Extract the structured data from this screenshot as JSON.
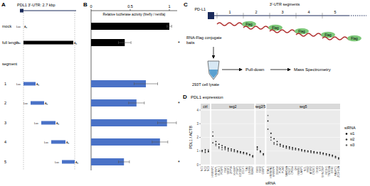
{
  "panel_labels": [
    "A",
    "B",
    "C",
    "D"
  ],
  "panel_a": {
    "title": "PDL1 3'-UTR: 2.7 kbp",
    "segment_header": "segment",
    "luc_label": "Luc",
    "polya_label": "A",
    "polya_sub": "n"
  },
  "panel_c": {
    "gene": "PD-L1",
    "utr_label": "3'-UTR segments",
    "segments": [
      "1",
      "2",
      "3",
      "4",
      "5"
    ],
    "tag": "Flag",
    "baits_label": [
      "RNA-Flag conjugate",
      "baits"
    ],
    "lysate": "293T cell lysate",
    "steps": [
      "Pull-down",
      "Mass Spectrometry"
    ]
  },
  "chart_data": [
    {
      "type": "bar",
      "orientation": "horizontal",
      "xlabel": "Relative luciferase activity (firefly / renilla)",
      "categories": [
        "mock",
        "full length",
        "1",
        "2",
        "3",
        "4",
        "5"
      ],
      "values": [
        1.0,
        0.43,
        0.7,
        0.58,
        0.97,
        0.88,
        0.42
      ],
      "errors": [
        0.03,
        0.08,
        0.15,
        0.1,
        0.12,
        0.1,
        0.07
      ],
      "colors": [
        "#000000",
        "#000000",
        "#4a72c7",
        "#4a72c7",
        "#4a72c7",
        "#4a72c7",
        "#4a72c7"
      ],
      "xlim": [
        0,
        1.1
      ],
      "xticks": [
        0,
        0.5,
        1
      ],
      "significant": [
        false,
        true,
        false,
        true,
        false,
        false,
        true
      ],
      "significance_label": "*"
    },
    {
      "type": "scatter",
      "title": "PDL1 expression",
      "xlabel": "siRNA",
      "ylabel": "PDL1 / ACTB",
      "facets": [
        "ctrl",
        "seg2",
        "seg2/5",
        "seg5"
      ],
      "facet_of": [
        0,
        0,
        0,
        1,
        1,
        1,
        1,
        1,
        1,
        1,
        1,
        1,
        1,
        1,
        1,
        1,
        1,
        2,
        2,
        2,
        3,
        3,
        3,
        3,
        3,
        3,
        3,
        3,
        3,
        3,
        3,
        3,
        3,
        3,
        3,
        3,
        3,
        3,
        3,
        3,
        3,
        3,
        3,
        3
      ],
      "categories": [
        "NC1",
        "NC2",
        "NC3",
        "HNRNPC",
        "HNRNPL",
        "ELAVL1",
        "PCBP2",
        "YBX1",
        "SRSF1",
        "ZFP36",
        "KHSRP",
        "PTBP1",
        "IGF2BP2",
        "CELF1",
        "TIA1",
        "LIN28B",
        "RBM47",
        "FXR1",
        "FXR2",
        "G3BP1",
        "STAU1",
        "HNRNPA1",
        "HNRNPK",
        "DDX3X",
        "PUM1",
        "PUM2",
        "SAMD4A",
        "CNOT1",
        "CPEB4",
        "QKI",
        "RBMS1",
        "LARP1",
        "NCL",
        "MSI2",
        "ATXN2",
        "CSDE1",
        "DHX9",
        "ILF3",
        "SYNCRIP",
        "RC3H1",
        "TNRC6A",
        "EIF4E",
        "PABPC1",
        "ZC3H12A"
      ],
      "series": [
        {
          "name": "si1",
          "color": "#000000",
          "values": [
            1.0,
            1.1,
            0.95,
            2.1,
            1.7,
            1.5,
            1.4,
            1.3,
            1.2,
            1.15,
            1.1,
            1.0,
            0.95,
            0.9,
            0.85,
            0.75,
            0.65,
            1.3,
            1.0,
            0.8,
            3.2,
            2.3,
            1.9,
            1.7,
            1.5,
            1.4,
            1.35,
            1.3,
            1.25,
            1.2,
            1.15,
            1.1,
            1.05,
            1.0,
            1.0,
            0.95,
            0.9,
            0.9,
            0.85,
            0.8,
            0.75,
            0.7,
            0.6,
            0.5
          ]
        },
        {
          "name": "si2",
          "color": "#333333",
          "values": [
            1.05,
            0.9,
            1.0,
            1.6,
            1.5,
            1.3,
            1.25,
            1.2,
            1.1,
            1.05,
            1.0,
            0.95,
            0.9,
            0.85,
            0.8,
            0.7,
            0.6,
            1.1,
            0.95,
            0.75,
            2.6,
            2.0,
            1.6,
            1.5,
            1.4,
            1.3,
            1.25,
            1.2,
            1.15,
            1.1,
            1.1,
            1.05,
            1.0,
            0.95,
            0.9,
            0.9,
            0.85,
            0.8,
            0.8,
            0.75,
            0.7,
            0.65,
            0.55,
            0.45
          ]
        },
        {
          "name": "si3",
          "color": "#666666",
          "values": [
            0.95,
            1.0,
            1.1,
            2.4,
            1.4,
            1.2,
            1.1,
            1.1,
            1.0,
            1.0,
            0.95,
            0.9,
            0.85,
            0.8,
            0.75,
            0.7,
            0.55,
            1.2,
            0.9,
            0.7,
            3.6,
            1.8,
            1.5,
            1.45,
            1.35,
            1.3,
            1.2,
            1.15,
            1.1,
            1.1,
            1.05,
            1.0,
            0.95,
            0.95,
            0.9,
            0.85,
            0.85,
            0.8,
            0.75,
            0.7,
            0.65,
            0.6,
            0.5,
            0.4
          ]
        }
      ],
      "ylim": [
        0,
        4
      ],
      "yticks": [
        0,
        1,
        2,
        3,
        4
      ],
      "grid": true,
      "legend": "right",
      "legend_title": "siRNA",
      "marker": "circle"
    }
  ]
}
